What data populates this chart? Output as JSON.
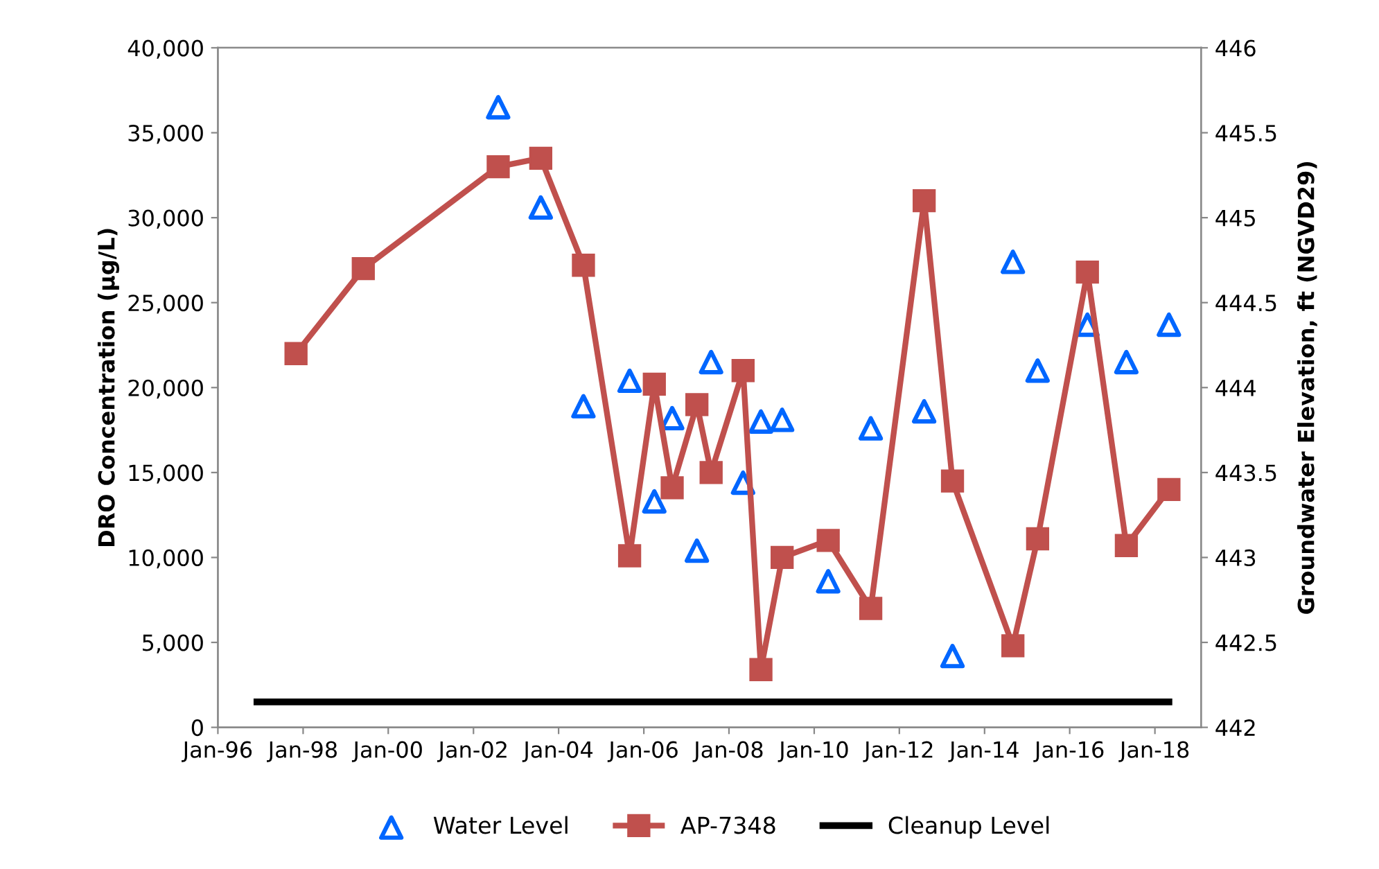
{
  "chart_data": {
    "type": "line",
    "ylabel": "DRO Concentration (µg/L)",
    "y2label": "Groundwater Elevation, ft (NGVD29)",
    "xlim": [
      "1996-01",
      "2019-02"
    ],
    "xticks": [
      {
        "value": "1996-01",
        "label": "Jan-96"
      },
      {
        "value": "1998-01",
        "label": "Jan-98"
      },
      {
        "value": "2000-01",
        "label": "Jan-00"
      },
      {
        "value": "2002-01",
        "label": "Jan-02"
      },
      {
        "value": "2004-01",
        "label": "Jan-04"
      },
      {
        "value": "2006-01",
        "label": "Jan-06"
      },
      {
        "value": "2008-01",
        "label": "Jan-08"
      },
      {
        "value": "2010-01",
        "label": "Jan-10"
      },
      {
        "value": "2012-01",
        "label": "Jan-12"
      },
      {
        "value": "2014-01",
        "label": "Jan-14"
      },
      {
        "value": "2016-01",
        "label": "Jan-16"
      },
      {
        "value": "2018-01",
        "label": "Jan-18"
      }
    ],
    "ylim": [
      0,
      40000
    ],
    "yticks": [
      0,
      {
        "value": 5000,
        "label": "5,000"
      },
      {
        "value": 10000,
        "label": "10,000"
      },
      {
        "value": 15000,
        "label": "15,000"
      },
      {
        "value": 20000,
        "label": "20,000"
      },
      {
        "value": 25000,
        "label": "25,000"
      },
      {
        "value": 30000,
        "label": "30,000"
      },
      {
        "value": 35000,
        "label": "35,000"
      },
      {
        "value": 40000,
        "label": "40,000"
      }
    ],
    "y2lim": [
      442,
      446
    ],
    "y2ticks": [
      442,
      442.5,
      443,
      443.5,
      444,
      444.5,
      445,
      445.5,
      446
    ],
    "grid": false,
    "legend": "bottom",
    "series": [
      {
        "name": "Water Level",
        "type": "scatter",
        "axis": "y2",
        "marker": "triangle",
        "color": "#0066ff",
        "x": [
          "2002-08",
          "2003-08",
          "2004-08",
          "2005-09",
          "2006-04",
          "2006-09",
          "2007-04",
          "2007-08",
          "2008-05",
          "2008-10",
          "2009-04",
          "2010-05",
          "2011-05",
          "2012-08",
          "2013-04",
          "2014-09",
          "2015-04",
          "2016-06",
          "2017-05",
          "2018-05"
        ],
        "values": [
          445.65,
          445.06,
          443.89,
          444.04,
          443.33,
          443.82,
          443.04,
          444.15,
          443.44,
          443.8,
          443.81,
          442.86,
          443.76,
          443.86,
          442.42,
          444.74,
          444.1,
          444.37,
          444.15,
          444.37
        ]
      },
      {
        "name": "AP-7348",
        "type": "line",
        "marker": "square",
        "line_style": "solid",
        "color": "#c0504d",
        "x": [
          "1997-11",
          "1999-06",
          "2002-08",
          "2003-08",
          "2004-08",
          "2005-09",
          "2006-04",
          "2006-09",
          "2007-04",
          "2007-08",
          "2008-05",
          "2008-10",
          "2009-04",
          "2010-05",
          "2011-05",
          "2012-08",
          "2013-04",
          "2014-09",
          "2015-04",
          "2016-06",
          "2017-05",
          "2018-05"
        ],
        "values": [
          22000,
          27000,
          33000,
          33500,
          27200,
          10100,
          20200,
          14100,
          19000,
          15000,
          21000,
          3400,
          10000,
          11000,
          7000,
          31000,
          14500,
          4800,
          11100,
          26800,
          10700,
          14000
        ]
      },
      {
        "name": "Cleanup Level",
        "marker": "none",
        "line_style": "solid",
        "color": "#000000",
        "x": [
          "1996-12",
          "2018-05"
        ],
        "values": [
          1500,
          1500
        ]
      }
    ]
  }
}
